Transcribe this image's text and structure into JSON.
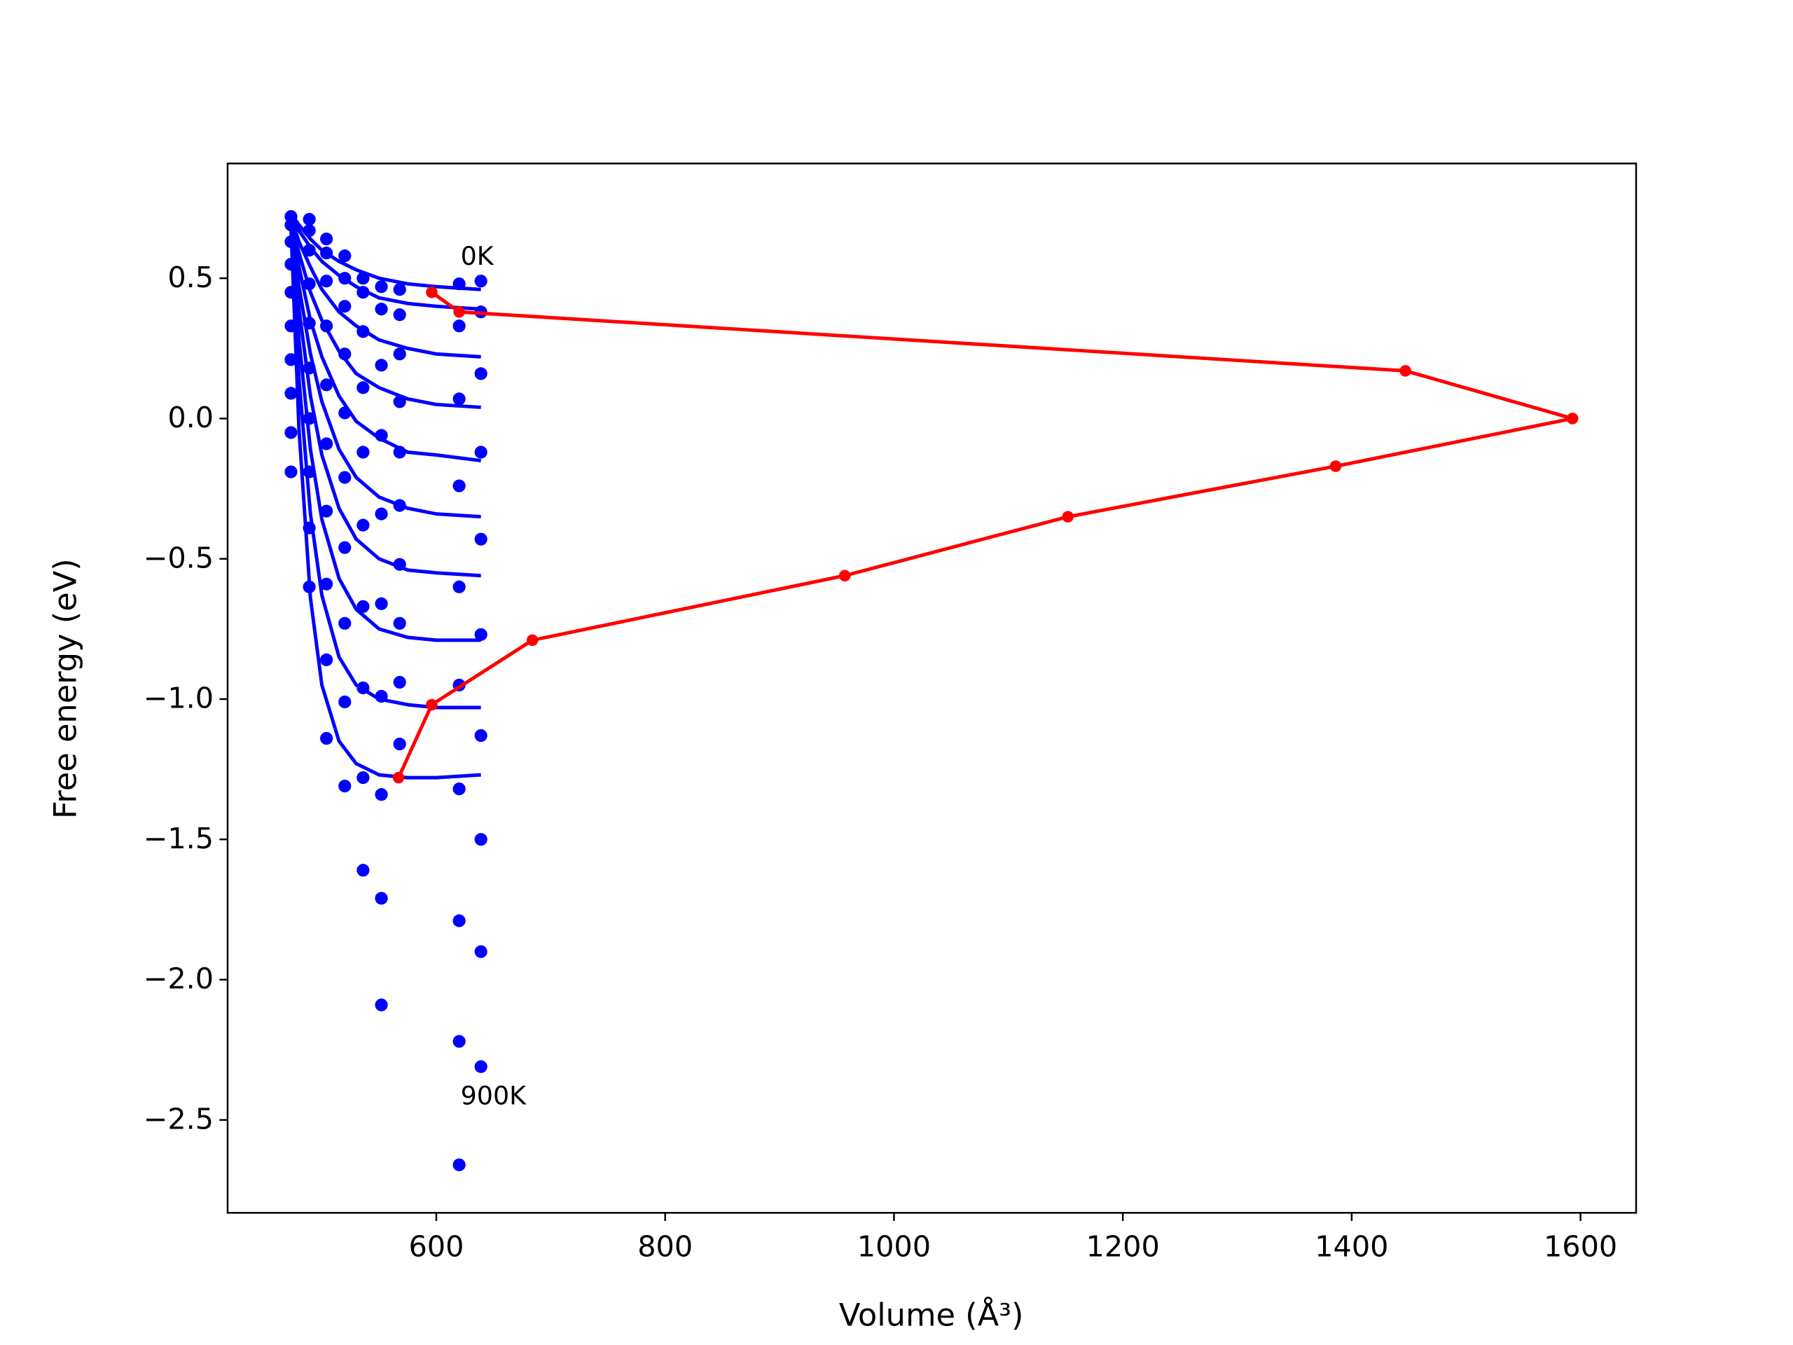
{
  "chart_data": {
    "type": "line",
    "x_label": "Volume (Å³)",
    "y_label": "Free energy (eV)",
    "xlim": [
      417.6,
      1648.6
    ],
    "ylim": [
      -2.831,
      0.909
    ],
    "xticks": [
      600,
      800,
      1000,
      1200,
      1400,
      1600
    ],
    "yticks": [
      {
        "value": -2.5,
        "label": "−2.5"
      },
      {
        "value": -2.0,
        "label": "−2.0"
      },
      {
        "value": -1.5,
        "label": "−1.5"
      },
      {
        "value": -1.0,
        "label": "−1.0"
      },
      {
        "value": -0.5,
        "label": "−0.5"
      },
      {
        "value": 0.0,
        "label": "0.0"
      },
      0.5
    ],
    "annotations": [
      "0K",
      "900K"
    ],
    "series": [
      {
        "type": "scatter",
        "color": "#0000ff",
        "x": [
          473,
          489,
          504,
          520,
          536,
          552,
          568,
          620,
          639
        ],
        "values": [
          0.72,
          0.71,
          0.64,
          0.58,
          0.5,
          0.47,
          0.46,
          0.48,
          0.49
        ]
      },
      {
        "type": "scatter",
        "color": "#0000ff",
        "x": [
          473,
          489,
          504,
          520,
          536,
          552,
          568,
          620,
          639
        ],
        "values": [
          0.69,
          0.67,
          0.59,
          0.5,
          0.45,
          0.39,
          0.37,
          0.33,
          0.38
        ]
      },
      {
        "type": "scatter",
        "color": "#0000ff",
        "x": [
          473,
          489,
          504,
          520,
          536,
          552,
          568,
          620,
          639
        ],
        "values": [
          0.63,
          0.6,
          0.49,
          0.4,
          0.31,
          0.19,
          0.23,
          0.07,
          0.16
        ]
      },
      {
        "type": "scatter",
        "color": "#0000ff",
        "x": [
          473,
          489,
          504,
          520,
          536,
          552,
          568,
          620,
          639
        ],
        "values": [
          0.55,
          0.48,
          0.33,
          0.23,
          0.11,
          -0.06,
          0.06,
          -0.24,
          -0.12
        ]
      },
      {
        "type": "scatter",
        "color": "#0000ff",
        "x": [
          473,
          489,
          504,
          520,
          536,
          552,
          568,
          620,
          639
        ],
        "values": [
          0.45,
          0.34,
          0.12,
          0.02,
          -0.12,
          -0.34,
          -0.12,
          -0.6,
          -0.43
        ]
      },
      {
        "type": "scatter",
        "color": "#0000ff",
        "x": [
          473,
          489,
          504,
          520,
          536,
          552,
          568,
          620,
          639
        ],
        "values": [
          0.33,
          0.18,
          -0.09,
          -0.21,
          -0.38,
          -0.66,
          -0.31,
          -0.95,
          -0.77
        ]
      },
      {
        "type": "scatter",
        "color": "#0000ff",
        "x": [
          473,
          489,
          504,
          520,
          536,
          552,
          568,
          620,
          639
        ],
        "values": [
          0.21,
          0.0,
          -0.33,
          -0.46,
          -0.67,
          -0.99,
          -0.52,
          -1.32,
          -1.13
        ]
      },
      {
        "type": "scatter",
        "color": "#0000ff",
        "x": [
          473,
          489,
          504,
          520,
          536,
          552,
          568,
          620,
          639
        ],
        "values": [
          0.09,
          -0.19,
          -0.59,
          -0.73,
          -0.96,
          -1.34,
          -0.73,
          -1.79,
          -1.5
        ]
      },
      {
        "type": "scatter",
        "color": "#0000ff",
        "x": [
          473,
          489,
          504,
          520,
          536,
          552,
          568,
          620,
          639
        ],
        "values": [
          -0.05,
          -0.39,
          -0.86,
          -1.01,
          -1.28,
          -1.71,
          -0.94,
          -2.22,
          -1.9
        ]
      },
      {
        "type": "scatter",
        "color": "#0000ff",
        "x": [
          473,
          489,
          504,
          520,
          536,
          552,
          568,
          620,
          639
        ],
        "values": [
          -0.19,
          -0.6,
          -1.14,
          -1.31,
          -1.61,
          -2.09,
          -1.16,
          -2.66,
          -2.31
        ]
      },
      {
        "type": "line",
        "color": "#0000ff",
        "x": [
          473,
          480,
          490,
          500,
          515,
          530,
          550,
          575,
          600,
          639
        ],
        "values": [
          0.73,
          0.69,
          0.64,
          0.6,
          0.56,
          0.53,
          0.5,
          0.48,
          0.47,
          0.46
        ]
      },
      {
        "type": "line",
        "color": "#0000ff",
        "x": [
          473,
          480,
          490,
          500,
          515,
          530,
          550,
          575,
          600,
          639
        ],
        "values": [
          0.72,
          0.67,
          0.61,
          0.56,
          0.51,
          0.47,
          0.43,
          0.41,
          0.4,
          0.39
        ]
      },
      {
        "type": "line",
        "color": "#0000ff",
        "x": [
          473,
          480,
          490,
          500,
          515,
          530,
          550,
          575,
          600,
          639
        ],
        "values": [
          0.72,
          0.63,
          0.54,
          0.46,
          0.38,
          0.33,
          0.28,
          0.25,
          0.23,
          0.22
        ]
      },
      {
        "type": "line",
        "color": "#0000ff",
        "x": [
          473,
          480,
          490,
          500,
          515,
          530,
          550,
          575,
          600,
          639
        ],
        "values": [
          0.71,
          0.59,
          0.45,
          0.35,
          0.24,
          0.16,
          0.11,
          0.07,
          0.05,
          0.04
        ]
      },
      {
        "type": "line",
        "color": "#0000ff",
        "x": [
          473,
          480,
          490,
          500,
          515,
          530,
          550,
          575,
          600,
          639
        ],
        "values": [
          0.71,
          0.54,
          0.35,
          0.22,
          0.08,
          -0.01,
          -0.07,
          -0.12,
          -0.13,
          -0.15
        ]
      },
      {
        "type": "line",
        "color": "#0000ff",
        "x": [
          473,
          480,
          490,
          500,
          515,
          530,
          550,
          575,
          600,
          639
        ],
        "values": [
          0.7,
          0.47,
          0.23,
          0.06,
          -0.11,
          -0.21,
          -0.28,
          -0.32,
          -0.34,
          -0.35
        ]
      },
      {
        "type": "line",
        "color": "#0000ff",
        "x": [
          473,
          480,
          490,
          500,
          515,
          530,
          550,
          575,
          600,
          639
        ],
        "values": [
          0.69,
          0.39,
          0.08,
          -0.13,
          -0.32,
          -0.43,
          -0.5,
          -0.54,
          -0.55,
          -0.56
        ]
      },
      {
        "type": "line",
        "color": "#0000ff",
        "x": [
          473,
          480,
          490,
          500,
          515,
          530,
          550,
          575,
          600,
          639
        ],
        "values": [
          0.69,
          0.28,
          -0.11,
          -0.36,
          -0.57,
          -0.68,
          -0.75,
          -0.78,
          -0.79,
          -0.79
        ]
      },
      {
        "type": "line",
        "color": "#0000ff",
        "x": [
          473,
          480,
          490,
          500,
          515,
          530,
          550,
          575,
          600,
          639
        ],
        "values": [
          0.68,
          0.14,
          -0.34,
          -0.63,
          -0.85,
          -0.95,
          -1.0,
          -1.02,
          -1.03,
          -1.03
        ]
      },
      {
        "type": "line",
        "color": "#0000ff",
        "x": [
          473,
          480,
          490,
          500,
          515,
          530,
          550,
          575,
          600,
          639
        ],
        "values": [
          0.68,
          -0.04,
          -0.64,
          -0.95,
          -1.15,
          -1.23,
          -1.27,
          -1.28,
          -1.28,
          -1.27
        ]
      },
      {
        "type": "line-markers",
        "color": "#ff0000",
        "x": [
          596,
          620,
          1447,
          1593,
          1386,
          1152,
          957,
          684,
          596,
          567
        ],
        "values": [
          0.45,
          0.38,
          0.17,
          0.0,
          -0.17,
          -0.35,
          -0.56,
          -0.79,
          -1.02,
          -1.28
        ]
      }
    ]
  }
}
